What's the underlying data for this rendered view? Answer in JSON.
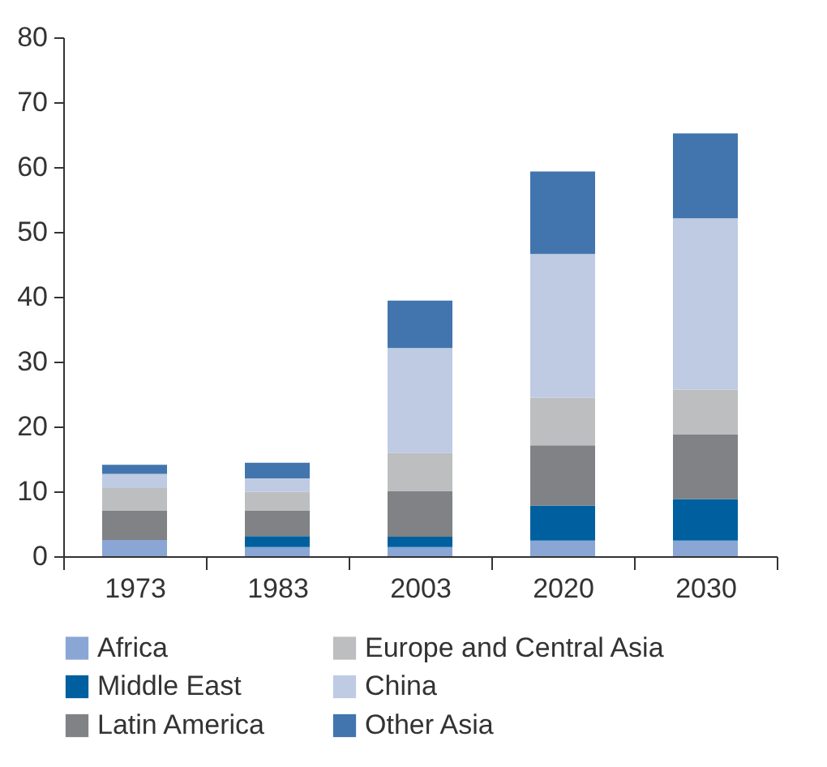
{
  "chart_data": {
    "type": "bar",
    "stacked": true,
    "categories": [
      "1973",
      "1983",
      "2003",
      "2020",
      "2030"
    ],
    "series": [
      {
        "name": "Africa",
        "color": "#8aa6d4",
        "values": [
          2.5,
          1.4,
          1.4,
          2.4,
          2.4
        ]
      },
      {
        "name": "Middle East",
        "color": "#00609f",
        "values": [
          0,
          1.7,
          1.6,
          5.4,
          6.4
        ]
      },
      {
        "name": "Latin America",
        "color": "#808285",
        "values": [
          4.5,
          3.9,
          7.0,
          9.3,
          10.0
        ]
      },
      {
        "name": "Europe and Central Asia",
        "color": "#bcbec0",
        "values": [
          3.5,
          2.9,
          5.9,
          7.3,
          6.9
        ]
      },
      {
        "name": "China",
        "color": "#bfcbe3",
        "values": [
          2.2,
          2.1,
          16.2,
          22.2,
          26.4
        ]
      },
      {
        "name": "Other Asia",
        "color": "#4275ae",
        "values": [
          1.4,
          2.4,
          7.3,
          12.7,
          13.1
        ]
      }
    ],
    "ylim": [
      0,
      80
    ],
    "yticks": [
      0,
      10,
      20,
      30,
      40,
      50,
      60,
      70,
      80
    ],
    "grid": false,
    "legend": "bottom"
  }
}
